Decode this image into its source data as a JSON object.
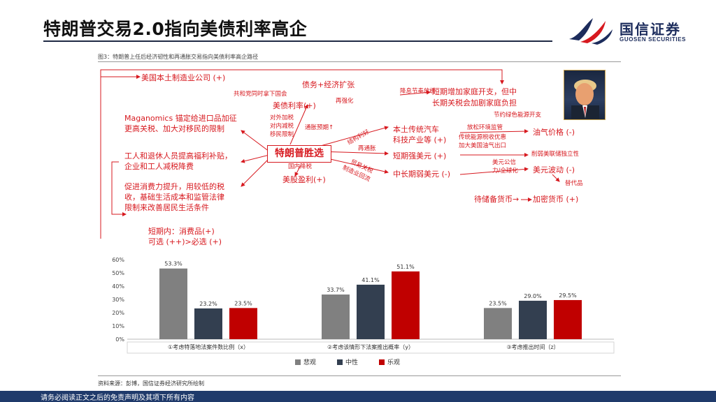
{
  "header": {
    "title": "特朗普交易2.0指向美债利率高企"
  },
  "logo": {
    "name_cn": "国信证券",
    "name_en": "GUOSEN SECURITIES"
  },
  "figure": {
    "caption": "图3：特朗普上任后经济韧性和再通胀交易指向美债利率高企路径"
  },
  "diagram": {
    "center": "特朗普胜选",
    "left_nodes": [
      "美国本土制造业公司 (+)",
      "Maganomics 锚定给进口品加征",
      "更高关税、加大对移民的限制",
      "工人和退休人员提高福利补贴，",
      "企业和工人减税降费",
      "促进消费力提升，用较低的税",
      "收，基础生活成本和监管法律",
      "限制来改善居民生活条件",
      "短期内：消费品(+)",
      "可选 (++)>必选 (+)"
    ],
    "middle_nodes": {
      "debt_growth": "债务+经济扩张",
      "treasury_rate": "美债利率(+)",
      "fiscal_note": "共和党同时拿下国会",
      "strengthen": "再强化",
      "external_policy": [
        "对外加税",
        "对内减税",
        "移民限制"
      ],
      "inflation_exp": "通胀预期↑",
      "domestic_tax": "国内降税",
      "us_stock": "美股盈利(+)"
    },
    "arrow_labels": [
      "结构利好",
      "再通胀",
      "贸易关税",
      "制造业回流"
    ],
    "right_nodes": {
      "rate_cut": "降息节奏放缓",
      "short_term_home": "短期增加家庭开支，但中",
      "long_term_home": "长期关税会加剧家庭负担",
      "new_energy": "节约绿色能源开支",
      "traditional_auto": "本土传统汽车",
      "tech_industry": "科技产业等 (+)",
      "deregulation": "放松环境监管",
      "tax_incentive": "传统能源税收优惠",
      "oil_export": "加大美国油气出口",
      "oil_price": "油气价格 (-)",
      "strong_usd_short": "短期强美元 (+)",
      "fed_independence": "削弱美联储独立性",
      "weak_usd_long": "中长期弱美元 (-)",
      "usd_debt": "美元公信",
      "globalization": "力/全球化",
      "usd_volatility": "美元波动 (-)",
      "substitute": "替代品",
      "reserve_currency": "待储备货币→",
      "crypto": "加密货币 (+)"
    }
  },
  "chart_data": {
    "type": "bar",
    "categories": [
      "①考虑特落地法案件数比例（x）",
      "②考虑该情形下法案推出概率（y）",
      "③考虑推出时间（z）"
    ],
    "series": [
      {
        "name": "悲观",
        "values": [
          53.3,
          33.7,
          23.5
        ],
        "labels": [
          "53.3%",
          "33.7%",
          "23.5%"
        ]
      },
      {
        "name": "中性",
        "values": [
          23.2,
          41.1,
          29.0
        ],
        "labels": [
          "23.2%",
          "41.1%",
          "29.0%"
        ]
      },
      {
        "name": "乐观",
        "values": [
          23.5,
          51.1,
          29.5
        ],
        "labels": [
          "23.5%",
          "51.1%",
          "29.5%"
        ]
      }
    ],
    "y_ticks": [
      "0%",
      "10%",
      "20%",
      "30%",
      "40%",
      "50%",
      "60%"
    ],
    "ylim": [
      0,
      60
    ],
    "legend_position": "bottom"
  },
  "colors": {
    "pessimistic": "#808080",
    "neutral": "#333f50",
    "optimistic": "#c00000",
    "accent": "#d7191f",
    "navy": "#1f3a6b"
  },
  "source": "资料来源：彭博，国信证券经济研究所绘制",
  "footer": {
    "text": "请务必阅读正文之后的免责声明及其项下所有内容"
  }
}
